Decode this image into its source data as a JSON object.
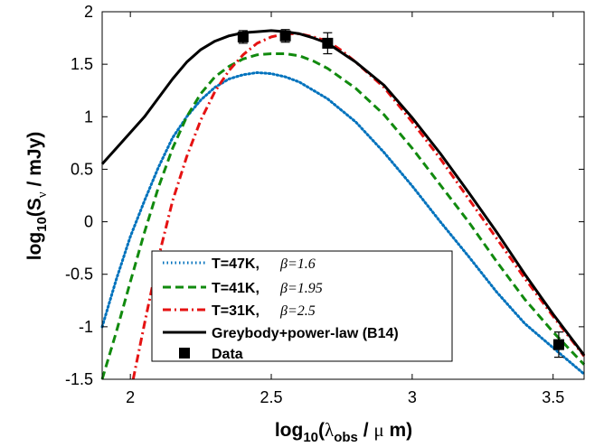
{
  "chart_data": {
    "type": "line",
    "xlabel": {
      "pre": "log",
      "sub1": "10",
      "mid": "(",
      "lambda": "λ",
      "sub2": "obs",
      "post": " /  ",
      "mu": "μ",
      "unit": " m)"
    },
    "ylabel": {
      "pre": "log",
      "sub1": "10",
      "mid": "(S",
      "sub2": "ν",
      "post": " / mJy)"
    },
    "xlim": [
      1.9,
      3.61
    ],
    "ylim": [
      -1.5,
      2
    ],
    "xticks": [
      2,
      2.5,
      3,
      3.5
    ],
    "xtick_labels": [
      "2",
      "2.5",
      "3",
      "3.5"
    ],
    "yticks": [
      -1.5,
      -1,
      -0.5,
      0,
      0.5,
      1,
      1.5,
      2
    ],
    "ytick_labels": [
      "-1.5",
      "-1",
      "-0.5",
      "0",
      "0.5",
      "1",
      "1.5",
      "2"
    ],
    "grid": false,
    "legend_position": "lower-left",
    "series": [
      {
        "name": "T=47K,",
        "beta_label": "β=1.6",
        "color": "#0072bd",
        "dash": "dotted",
        "x": [
          1.9,
          1.95,
          2.0,
          2.05,
          2.1,
          2.15,
          2.2,
          2.25,
          2.3,
          2.35,
          2.4,
          2.45,
          2.5,
          2.55,
          2.6,
          2.7,
          2.8,
          2.9,
          3.0,
          3.1,
          3.2,
          3.3,
          3.4,
          3.5,
          3.61
        ],
        "y": [
          -1.0,
          -0.55,
          -0.14,
          0.2,
          0.52,
          0.8,
          1.0,
          1.16,
          1.28,
          1.36,
          1.4,
          1.42,
          1.41,
          1.38,
          1.33,
          1.17,
          0.95,
          0.66,
          0.34,
          0.0,
          -0.33,
          -0.67,
          -0.97,
          -1.2,
          -1.45
        ]
      },
      {
        "name": "T=41K,",
        "beta_label": "β=1.95",
        "color": "#118a0e",
        "dash": "dashed",
        "x": [
          1.9,
          1.95,
          2.0,
          2.05,
          2.1,
          2.15,
          2.2,
          2.25,
          2.3,
          2.35,
          2.4,
          2.45,
          2.5,
          2.55,
          2.6,
          2.65,
          2.7,
          2.8,
          2.9,
          3.0,
          3.1,
          3.2,
          3.3,
          3.4,
          3.5,
          3.61
        ],
        "y": [
          -1.5,
          -1.05,
          -0.57,
          -0.1,
          0.33,
          0.7,
          1.0,
          1.22,
          1.38,
          1.48,
          1.55,
          1.59,
          1.6,
          1.6,
          1.58,
          1.53,
          1.46,
          1.27,
          1.02,
          0.7,
          0.35,
          0.0,
          -0.38,
          -0.74,
          -1.05,
          -1.36
        ]
      },
      {
        "name": "T=31K,",
        "beta_label": "β=2.5",
        "color": "#e51212",
        "dash": "dashdot",
        "x": [
          2.01,
          2.05,
          2.1,
          2.15,
          2.2,
          2.25,
          2.3,
          2.35,
          2.4,
          2.45,
          2.5,
          2.55,
          2.6,
          2.65,
          2.7,
          2.75,
          2.8,
          2.9,
          3.0,
          3.1,
          3.2,
          3.3,
          3.4,
          3.5,
          3.61
        ],
        "y": [
          -1.5,
          -0.97,
          -0.34,
          0.2,
          0.62,
          0.97,
          1.24,
          1.44,
          1.59,
          1.7,
          1.76,
          1.79,
          1.79,
          1.76,
          1.72,
          1.63,
          1.52,
          1.28,
          0.95,
          0.6,
          0.22,
          -0.16,
          -0.54,
          -0.9,
          -1.28
        ]
      },
      {
        "name": "Greybody+power-law (B14)",
        "color": "#000000",
        "dash": "solid",
        "x": [
          1.9,
          1.95,
          2.0,
          2.05,
          2.1,
          2.15,
          2.2,
          2.25,
          2.3,
          2.35,
          2.4,
          2.45,
          2.5,
          2.55,
          2.6,
          2.65,
          2.7,
          2.8,
          2.9,
          3.0,
          3.1,
          3.2,
          3.3,
          3.4,
          3.5,
          3.61
        ],
        "y": [
          0.55,
          0.7,
          0.85,
          1.0,
          1.18,
          1.36,
          1.52,
          1.64,
          1.72,
          1.77,
          1.8,
          1.81,
          1.82,
          1.81,
          1.79,
          1.75,
          1.7,
          1.52,
          1.3,
          0.99,
          0.65,
          0.28,
          -0.1,
          -0.5,
          -0.88,
          -1.27
        ]
      }
    ],
    "data_points": {
      "name": "Data",
      "x": [
        2.4,
        2.55,
        2.7,
        3.52
      ],
      "y": [
        1.76,
        1.77,
        1.7,
        -1.17
      ],
      "err": [
        0.06,
        0.06,
        0.1,
        0.12
      ]
    }
  }
}
